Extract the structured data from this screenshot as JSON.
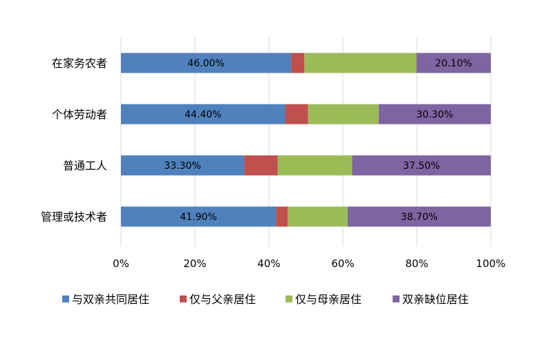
{
  "chart_data": {
    "type": "bar",
    "orientation": "horizontal",
    "stacked": "percent",
    "categories": [
      "在家务农者",
      "个体劳动者",
      "普通工人",
      "管理或技术者"
    ],
    "series": [
      {
        "name": "与双亲共同居住",
        "color": "#4F81BD",
        "values": [
          46.0,
          44.4,
          33.3,
          41.9
        ]
      },
      {
        "name": "仅与父亲居住",
        "color": "#C0504D",
        "values": [
          3.6,
          6.2,
          9.1,
          3.2
        ]
      },
      {
        "name": "仅与母亲居住",
        "color": "#9BBB59",
        "values": [
          30.3,
          19.1,
          20.1,
          16.2
        ]
      },
      {
        "name": "双亲缺位居住",
        "color": "#8064A2",
        "values": [
          20.1,
          30.3,
          37.5,
          38.7
        ]
      }
    ],
    "data_labels": [
      {
        "category": 0,
        "series": 0,
        "text": "46.00%"
      },
      {
        "category": 0,
        "series": 3,
        "text": "20.10%"
      },
      {
        "category": 1,
        "series": 0,
        "text": "44.40%"
      },
      {
        "category": 1,
        "series": 3,
        "text": "30.30%"
      },
      {
        "category": 2,
        "series": 0,
        "text": "33.30%"
      },
      {
        "category": 2,
        "series": 3,
        "text": "37.50%"
      },
      {
        "category": 3,
        "series": 0,
        "text": "41.90%"
      },
      {
        "category": 3,
        "series": 3,
        "text": "38.70%"
      }
    ],
    "x_ticks": [
      "0%",
      "20%",
      "40%",
      "60%",
      "80%",
      "100%"
    ],
    "xlim": [
      0,
      100
    ],
    "grid": true,
    "legend_position": "bottom"
  }
}
